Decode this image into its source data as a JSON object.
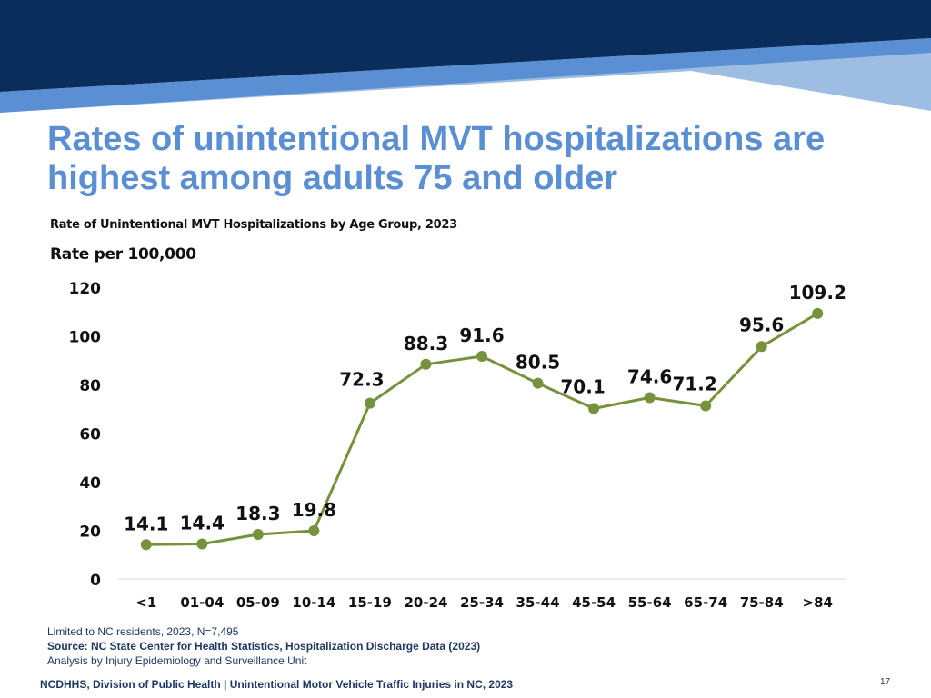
{
  "slide": {
    "title_line1": "Rates of unintentional MVT hospitalizations are",
    "title_line2": "highest among adults 75 and older",
    "page_number": "17",
    "footer": "NCDHHS, Division of Public Health | Unintentional Motor Vehicle Traffic Injuries in NC, 2023",
    "notes": {
      "limited": "Limited to NC residents, 2023, N=7,495",
      "source": "Source: NC State Center for Health Statistics, Hospitalization Discharge Data (2023)",
      "analysis": "Analysis by Injury Epidemiology and Surveillance Unit"
    }
  },
  "colors": {
    "banner_dark": "#0b2d5c",
    "banner_mid": "#5b8fd3",
    "banner_light": "#9dbde3",
    "title": "#5b8fd3",
    "series": "#76923c",
    "axis": "#d9d9d9",
    "text": "#111111"
  },
  "chart_data": {
    "type": "line",
    "title": "Rate of Unintentional MVT Hospitalizations by Age Group, 2023",
    "ylabel": "Rate per 100,000",
    "xlabel": "",
    "categories": [
      "<1",
      "01-04",
      "05-09",
      "10-14",
      "15-19",
      "20-24",
      "25-34",
      "35-44",
      "45-54",
      "55-64",
      "65-74",
      "75-84",
      ">84"
    ],
    "series": [
      {
        "name": "Rate per 100,000",
        "values": [
          14.1,
          14.4,
          18.3,
          19.8,
          72.3,
          88.3,
          91.6,
          80.5,
          70.1,
          74.6,
          71.2,
          95.6,
          109.2
        ]
      }
    ],
    "ylim": [
      0,
      120
    ],
    "yticks": [
      0,
      20,
      40,
      60,
      80,
      100,
      120
    ],
    "grid": false,
    "legend": "none",
    "data_labels": true
  }
}
